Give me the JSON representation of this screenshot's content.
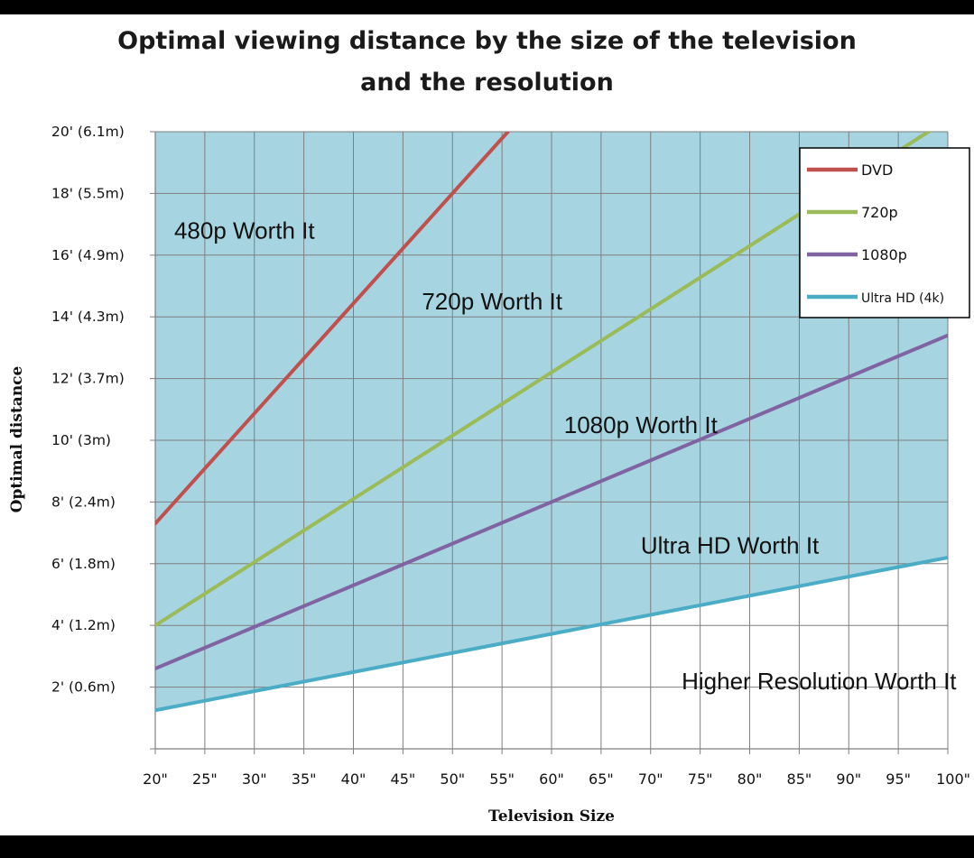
{
  "chart_data": {
    "type": "area",
    "title_lines": [
      "Optimal viewing distance by the size of the television",
      "and the resolution"
    ],
    "xlabel": "Television Size",
    "ylabel": "Optimal distance",
    "x": [
      20,
      25,
      30,
      35,
      40,
      45,
      50,
      55,
      60,
      65,
      70,
      75,
      80,
      85,
      90,
      95,
      100
    ],
    "x_tick_labels": [
      "20\"",
      "25\"",
      "30\"",
      "35\"",
      "40\"",
      "45\"",
      "50\"",
      "55\"",
      "60\"",
      "65\"",
      "70\"",
      "75\"",
      "80\"",
      "85\"",
      "90\"",
      "95\"",
      "100\""
    ],
    "y_ticks": [
      {
        "value": 2,
        "label": "2' (0.6m)"
      },
      {
        "value": 4,
        "label": "4' (1.2m)"
      },
      {
        "value": 6,
        "label": "6' (1.8m)"
      },
      {
        "value": 8,
        "label": "8' (2.4m)"
      },
      {
        "value": 10,
        "label": "10' (3m)"
      },
      {
        "value": 12,
        "label": "12' (3.7m)"
      },
      {
        "value": 14,
        "label": "14' (4.3m)"
      },
      {
        "value": 16,
        "label": "16' (4.9m)"
      },
      {
        "value": 18,
        "label": "18' (5.5m)"
      },
      {
        "value": 20,
        "label": "20' (6.1m)"
      }
    ],
    "xlim": [
      20,
      100
    ],
    "ylim": [
      0,
      20
    ],
    "grid": true,
    "legend_position": "top-right",
    "series": [
      {
        "name": "DVD",
        "color": "#c0504d",
        "fill": "#dba3a3",
        "x": [
          20,
          55.6
        ],
        "y": [
          7.3,
          20
        ]
      },
      {
        "name": "720p",
        "color": "#9bbb59",
        "fill": "#d0dfa5",
        "x": [
          20,
          100
        ],
        "y": [
          4,
          20.4
        ]
      },
      {
        "name": "1080p",
        "color": "#8064a2",
        "fill": "#c0b0d4",
        "x": [
          20,
          100
        ],
        "y": [
          2.6,
          13.4
        ]
      },
      {
        "name": "Ultra HD (4k)",
        "color": "#4bacc6",
        "fill": "#a6d4e1",
        "x": [
          20,
          100
        ],
        "y": [
          1.25,
          6.2
        ]
      }
    ],
    "annotations": [
      {
        "text": "480p Worth It",
        "x": 29,
        "y": 16.8
      },
      {
        "text": "720p Worth It",
        "x": 54,
        "y": 14.5
      },
      {
        "text": "1080p Worth It",
        "x": 69,
        "y": 10.5
      },
      {
        "text": "Ultra HD Worth It",
        "x": 78,
        "y": 6.6
      },
      {
        "text": "Higher Resolution Worth It",
        "x": 87,
        "y": 2.2
      }
    ]
  }
}
